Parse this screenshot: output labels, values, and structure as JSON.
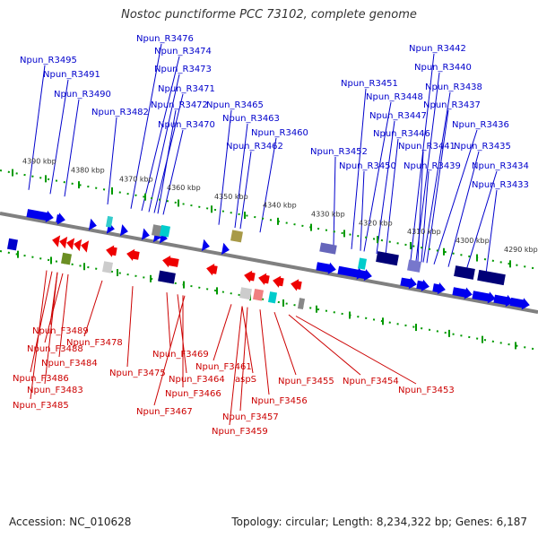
{
  "title": "Nostoc punctiforme PCC 73102, complete genome",
  "accession": "Accession: NC_010628",
  "summary": "Topology: circular; Length: 8,234,322 bp; Genes: 6,187",
  "colors": {
    "top_label": "#0000cc",
    "bottom_label": "#cc0000",
    "forward": "#0000ee",
    "reverse": "#ee0000",
    "ruler_tick": "#009900",
    "backbone": "#808080"
  },
  "kbp_labels": [
    "4390 kbp",
    "4380 kbp",
    "4370 kbp",
    "4360 kbp",
    "4350 kbp",
    "4340 kbp",
    "4330 kbp",
    "4320 kbp",
    "4310 kbp",
    "4300 kbp",
    "4290 kbp"
  ],
  "top_genes": [
    "Npun_R3495",
    "Npun_R3491",
    "Npun_R3490",
    "Npun_R3482",
    "Npun_R3476",
    "Npun_R3474",
    "Npun_R3473",
    "Npun_R3471",
    "Npun_R3472",
    "Npun_R3470",
    "Npun_R3465",
    "Npun_R3463",
    "Npun_R3460",
    "Npun_R3462",
    "Npun_R3452",
    "Npun_R3451",
    "Npun_R3448",
    "Npun_R3447",
    "Npun_R3446",
    "Npun_R3450",
    "Npun_R3442",
    "Npun_R3440",
    "Npun_R3438",
    "Npun_R3437",
    "Npun_R3436",
    "Npun_R3441",
    "Npun_R3439",
    "Npun_R3435",
    "Npun_R3434",
    "Npun_R3433"
  ],
  "bottom_genes": [
    "Npun_F3489",
    "Npun_F3488",
    "Npun_F3484",
    "Npun_F3486",
    "Npun_F3483",
    "Npun_F3485",
    "Npun_F3478",
    "Npun_F3475",
    "Npun_F3469",
    "Npun_F3464",
    "Npun_F3466",
    "Npun_F3467",
    "Npun_F3461",
    "aspS",
    "Npun_F3456",
    "Npun_F3457",
    "Npun_F3459",
    "Npun_F3455",
    "Npun_F3454",
    "Npun_F3453"
  ]
}
